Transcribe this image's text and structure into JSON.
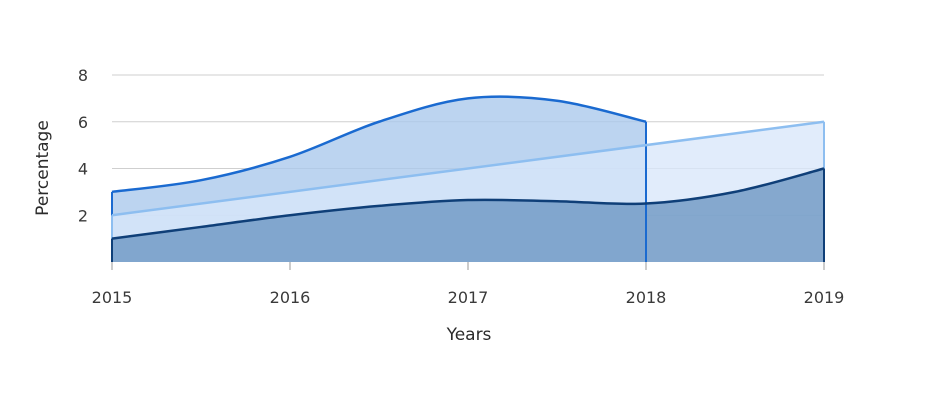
{
  "chart_data": {
    "type": "area",
    "title": "",
    "xlabel": "Years",
    "ylabel": "Percentage",
    "categories": [
      "2015",
      "2016",
      "2017",
      "2018",
      "2019"
    ],
    "x": [
      2015,
      2016,
      2017,
      2018,
      2019
    ],
    "ylim": [
      0,
      8
    ],
    "yticks": [
      2,
      4,
      6,
      8
    ],
    "grid": true,
    "legend": "none",
    "series": [
      {
        "x": [
          2015,
          2015.5,
          2016,
          2016.5,
          2017,
          2017.5,
          2018
        ],
        "values": [
          3,
          3.5,
          4.5,
          6,
          7,
          6.9,
          6
        ],
        "fill": "#a9c8ec",
        "stroke": "#1a6ad0",
        "line_style": "smooth"
      },
      {
        "x": [
          2015,
          2019
        ],
        "values": [
          2,
          6
        ],
        "fill": "#d8e7fa",
        "stroke": "#8dbef0",
        "line_style": "straight"
      },
      {
        "x": [
          2015,
          2015.5,
          2016,
          2016.5,
          2017,
          2017.5,
          2018,
          2018.5,
          2019
        ],
        "values": [
          1,
          1.5,
          2,
          2.4,
          2.65,
          2.6,
          2.5,
          3,
          4
        ],
        "fill": "#6a95c2",
        "stroke": "#0f3f78",
        "line_style": "smooth"
      }
    ]
  }
}
